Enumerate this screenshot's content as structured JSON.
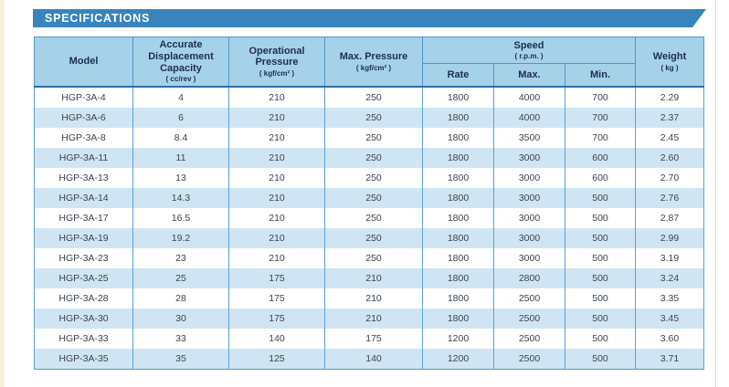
{
  "section": {
    "title": "SPECIFICATIONS"
  },
  "colors": {
    "banner": "#3884bd",
    "header_bg": "#a6d2e9",
    "alt_row_bg": "#d0e5f3",
    "grid_line": "#4d97cb",
    "header_text": "#1e2d52",
    "body_text": "#3d434b",
    "page_edge": "#f6f3d9"
  },
  "table": {
    "columns": {
      "model": {
        "label": "Model"
      },
      "capacity": {
        "label": "Accurate Displacement Capacity",
        "unit": "( cc/rev )"
      },
      "operational_pressure": {
        "label": "Operational Pressure",
        "unit": "( kgf/cm² )"
      },
      "max_pressure": {
        "label": "Max. Pressure",
        "unit": "( kgf/cm² )"
      },
      "speed": {
        "label": "Speed",
        "unit": "( r.p.m. )",
        "sub": [
          "Rate",
          "Max.",
          "Min."
        ]
      },
      "weight": {
        "label": "Weight",
        "unit": "( kg )"
      }
    },
    "col_keys": [
      "model",
      "capacity",
      "operational-pressure",
      "max-pressure",
      "speed-rate",
      "speed-max",
      "speed-min",
      "weight"
    ],
    "rows": [
      [
        "HGP-3A-4",
        "4",
        "210",
        "250",
        "1800",
        "4000",
        "700",
        "2.29"
      ],
      [
        "HGP-3A-6",
        "6",
        "210",
        "250",
        "1800",
        "4000",
        "700",
        "2.37"
      ],
      [
        "HGP-3A-8",
        "8.4",
        "210",
        "250",
        "1800",
        "3500",
        "700",
        "2.45"
      ],
      [
        "HGP-3A-11",
        "11",
        "210",
        "250",
        "1800",
        "3000",
        "600",
        "2.60"
      ],
      [
        "HGP-3A-13",
        "13",
        "210",
        "250",
        "1800",
        "3000",
        "600",
        "2.70"
      ],
      [
        "HGP-3A-14",
        "14.3",
        "210",
        "250",
        "1800",
        "3000",
        "500",
        "2.76"
      ],
      [
        "HGP-3A-17",
        "16.5",
        "210",
        "250",
        "1800",
        "3000",
        "500",
        "2.87"
      ],
      [
        "HGP-3A-19",
        "19.2",
        "210",
        "250",
        "1800",
        "3000",
        "500",
        "2.99"
      ],
      [
        "HGP-3A-23",
        "23",
        "210",
        "250",
        "1800",
        "3000",
        "500",
        "3.19"
      ],
      [
        "HGP-3A-25",
        "25",
        "175",
        "210",
        "1800",
        "2800",
        "500",
        "3.24"
      ],
      [
        "HGP-3A-28",
        "28",
        "175",
        "210",
        "1800",
        "2500",
        "500",
        "3.35"
      ],
      [
        "HGP-3A-30",
        "30",
        "175",
        "210",
        "1800",
        "2500",
        "500",
        "3.45"
      ],
      [
        "HGP-3A-33",
        "33",
        "140",
        "175",
        "1200",
        "2500",
        "500",
        "3.60"
      ],
      [
        "HGP-3A-35",
        "35",
        "125",
        "140",
        "1200",
        "2500",
        "500",
        "3.71"
      ]
    ]
  }
}
